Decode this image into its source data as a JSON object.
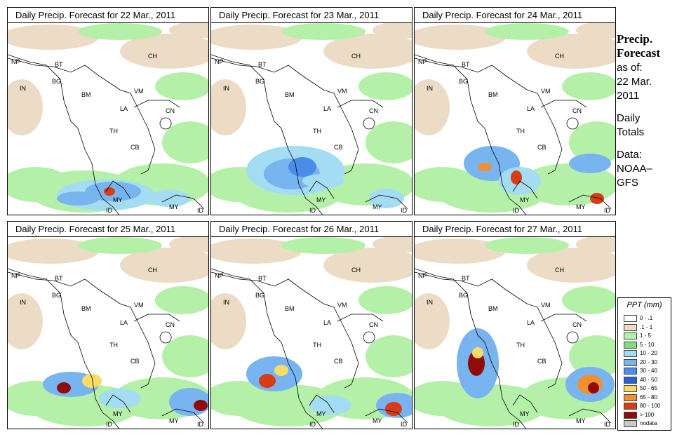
{
  "panels": [
    {
      "title": "Daily Precip. Forecast for  22 Mar., 2011"
    },
    {
      "title": "Daily Precip. Forecast for  23 Mar., 2011"
    },
    {
      "title": "Daily Precip. Forecast for  24 Mar., 2011"
    },
    {
      "title": "Daily Precip. Forecast for  25 Mar., 2011"
    },
    {
      "title": "Daily Precip. Forecast for  26 Mar., 2011"
    },
    {
      "title": "Daily Precip. Forecast for  27 Mar., 2011"
    }
  ],
  "map_labels": [
    "NP",
    "BT",
    "BG",
    "IN",
    "BM",
    "CH",
    "VM",
    "LA",
    "TH",
    "CB",
    "CN",
    "MY",
    "MY",
    "ID",
    "ID"
  ],
  "side": {
    "title_line1": "Precip.",
    "title_line2": "Forecast",
    "asof": "as of:",
    "date_line1": "22 Mar.",
    "date_line2": "2011",
    "totals_line1": "Daily",
    "totals_line2": "Totals",
    "data_line1": "Data:",
    "data_line2": "NOAA–",
    "data_line3": "GFS"
  },
  "legend": {
    "title": "PPT (mm)",
    "items": [
      {
        "label": "0 - .1",
        "color": "#ffffff"
      },
      {
        "label": ".1 - 1",
        "color": "#ecdcc6"
      },
      {
        "label": "1 - 5",
        "color": "#b4f0a8"
      },
      {
        "label": "5 - 10",
        "color": "#7ee07c"
      },
      {
        "label": "10 - 20",
        "color": "#a4dcf4"
      },
      {
        "label": "20 - 30",
        "color": "#78b4f0"
      },
      {
        "label": "30 - 40",
        "color": "#4a8ce8"
      },
      {
        "label": "40 - 50",
        "color": "#2860dc"
      },
      {
        "label": "50 - 65",
        "color": "#f8dc64"
      },
      {
        "label": "65 - 80",
        "color": "#f09030"
      },
      {
        "label": "80 - 100",
        "color": "#d83c14"
      },
      {
        "label": "> 100",
        "color": "#900c08"
      },
      {
        "label": "nodata",
        "color": "#c8c8c8"
      }
    ]
  }
}
